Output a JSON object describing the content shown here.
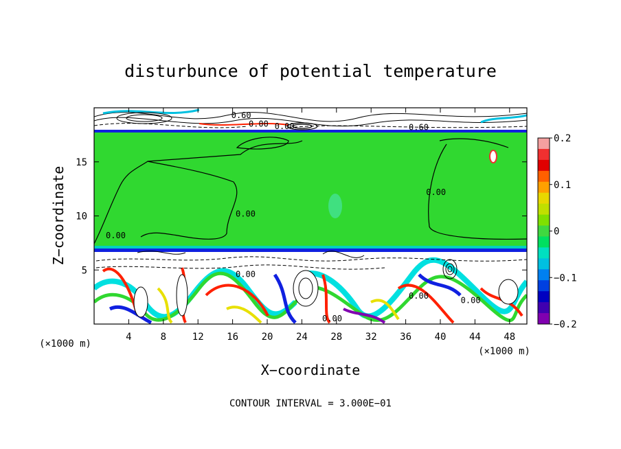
{
  "chart_data": {
    "type": "heatmap",
    "title": "disturbunce of potential temperature",
    "xlabel": "X−coordinate",
    "ylabel": "Z−coordinate",
    "x_unit": "(×1000 m)",
    "y_unit": "(×1000 m)",
    "xlim": [
      0,
      50
    ],
    "ylim": [
      0,
      20
    ],
    "xticks": [
      4,
      8,
      12,
      16,
      20,
      24,
      28,
      32,
      36,
      40,
      44,
      48
    ],
    "yticks": [
      5,
      10,
      15
    ],
    "footer": "CONTOUR INTERVAL = 3.000E−01",
    "colorbar": {
      "range": [
        -0.2,
        0.2
      ],
      "ticks": [
        0.2,
        0.1,
        0,
        -0.1,
        -0.2
      ],
      "tick_labels": [
        "0.2",
        "0.1",
        "0",
        "−0.1",
        "−0.2"
      ],
      "colors": [
        "#f4a0a0",
        "#f03030",
        "#e00000",
        "#ff6000",
        "#ffa000",
        "#e8d800",
        "#c0e000",
        "#80e000",
        "#40d840",
        "#00e060",
        "#00e0c0",
        "#00c0e0",
        "#0080f0",
        "#0040e0",
        "#0000c0",
        "#4000b0",
        "#8000b0"
      ]
    },
    "regions": [
      {
        "z": [
          0,
          7
        ],
        "level": "strong disturbance, ±0.2"
      },
      {
        "z": [
          7,
          17.8
        ],
        "level": "near 0"
      },
      {
        "z": [
          17.8,
          20
        ],
        "level": "strong disturbance, ±0.2"
      }
    ],
    "contour_labels": [
      {
        "text": "0.60",
        "x": 17,
        "z": 19.3
      },
      {
        "text": "0.60",
        "x": 37.5,
        "z": 18.2
      },
      {
        "text": "0.00",
        "x": 19,
        "z": 18.5
      },
      {
        "text": "0.00",
        "x": 22,
        "z": 18.3
      },
      {
        "text": "0.00",
        "x": 2.5,
        "z": 8.2
      },
      {
        "text": "0.00",
        "x": 17.5,
        "z": 10.2
      },
      {
        "text": "0.00",
        "x": 39.5,
        "z": 12.2
      },
      {
        "text": "0.00",
        "x": 17.5,
        "z": 4.6
      },
      {
        "text": "0.00",
        "x": 27.5,
        "z": 0.5
      },
      {
        "text": "0.00",
        "x": 37.5,
        "z": 2.6
      },
      {
        "text": "0.00",
        "x": 43.5,
        "z": 2.2
      }
    ],
    "colors": {
      "green": "#30d830",
      "white": "#ffffff",
      "blue_band": "#1020e0",
      "cyan": "#00e0e0",
      "red": "#ff2000",
      "yellow": "#e8e000",
      "purple": "#8000b0"
    }
  }
}
